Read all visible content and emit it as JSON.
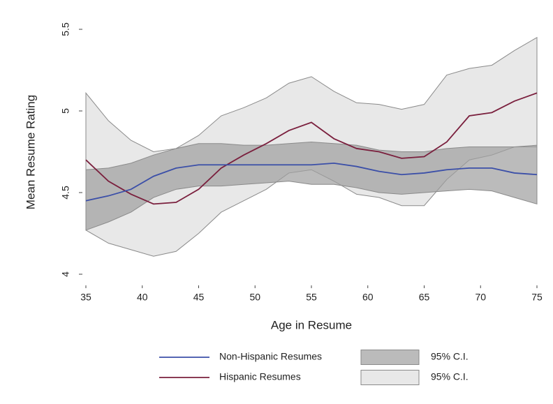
{
  "chart_data": {
    "type": "line",
    "x_label": "Age in Resume",
    "y_label": "Mean Resume Rating",
    "x": [
      35,
      37,
      39,
      41,
      43,
      45,
      47,
      49,
      51,
      53,
      55,
      57,
      59,
      61,
      63,
      65,
      67,
      69,
      71,
      73,
      75
    ],
    "series": [
      {
        "name": "Non-Hispanic Resumes",
        "kind": "line",
        "color": "#3b4fa8",
        "values": [
          4.45,
          4.48,
          4.52,
          4.6,
          4.65,
          4.67,
          4.67,
          4.67,
          4.67,
          4.67,
          4.67,
          4.68,
          4.66,
          4.63,
          4.61,
          4.62,
          4.64,
          4.65,
          4.65,
          4.62,
          4.61
        ]
      },
      {
        "name": "Hispanic Resumes",
        "kind": "line",
        "color": "#7a1f3d",
        "values": [
          4.7,
          4.57,
          4.49,
          4.43,
          4.44,
          4.52,
          4.65,
          4.73,
          4.8,
          4.88,
          4.93,
          4.83,
          4.77,
          4.75,
          4.71,
          4.72,
          4.81,
          4.97,
          4.99,
          5.06,
          5.11
        ]
      },
      {
        "name": "95% C.I.",
        "kind": "band",
        "color": "#9e9e9e",
        "lower": [
          4.27,
          4.32,
          4.38,
          4.47,
          4.52,
          4.54,
          4.54,
          4.55,
          4.56,
          4.57,
          4.55,
          4.55,
          4.53,
          4.5,
          4.49,
          4.5,
          4.51,
          4.52,
          4.51,
          4.47,
          4.43
        ],
        "upper": [
          4.64,
          4.65,
          4.68,
          4.73,
          4.77,
          4.8,
          4.8,
          4.79,
          4.79,
          4.8,
          4.81,
          4.8,
          4.79,
          4.76,
          4.75,
          4.75,
          4.77,
          4.78,
          4.78,
          4.78,
          4.79
        ]
      },
      {
        "name": "95% C.I.",
        "kind": "band",
        "color": "#dedede",
        "lower": [
          4.27,
          4.19,
          4.15,
          4.11,
          4.14,
          4.25,
          4.38,
          4.45,
          4.52,
          4.62,
          4.64,
          4.57,
          4.49,
          4.47,
          4.42,
          4.42,
          4.58,
          4.7,
          4.73,
          4.78,
          4.78
        ],
        "upper": [
          5.11,
          4.94,
          4.82,
          4.75,
          4.77,
          4.85,
          4.97,
          5.02,
          5.08,
          5.17,
          5.21,
          5.12,
          5.05,
          5.04,
          5.01,
          5.04,
          5.22,
          5.26,
          5.28,
          5.37,
          5.45
        ]
      }
    ],
    "xlim": [
      35,
      75
    ],
    "xticks": [
      35,
      40,
      45,
      50,
      55,
      60,
      65,
      70,
      75
    ],
    "ylim": [
      4,
      5.5
    ],
    "yticks": [
      4,
      4.5,
      5,
      5.5
    ]
  }
}
